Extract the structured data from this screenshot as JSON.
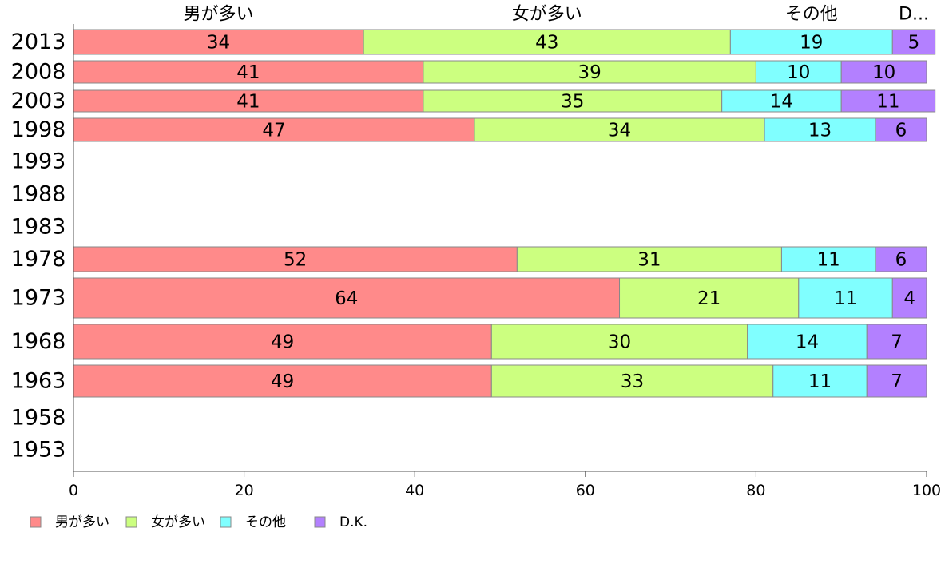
{
  "chart_data": {
    "type": "bar",
    "orientation": "horizontal",
    "stacked": true,
    "categories": [
      "2013",
      "2008",
      "2003",
      "1998",
      "1993",
      "1988",
      "1983",
      "1978",
      "1973",
      "1968",
      "1963",
      "1958",
      "1953"
    ],
    "series": [
      {
        "name": "男が多い",
        "color": "#FF8A8A",
        "values": [
          34,
          41,
          41,
          47,
          null,
          null,
          null,
          52,
          64,
          49,
          49,
          null,
          null
        ],
        "labels": [
          "34",
          "41",
          "41",
          "47",
          "",
          "",
          "",
          "52",
          "64",
          "49",
          "49",
          "",
          ""
        ]
      },
      {
        "name": "女が多い",
        "color": "#CCFF80",
        "values": [
          43,
          39,
          35,
          34,
          null,
          null,
          null,
          31,
          21,
          30,
          33,
          null,
          null
        ],
        "labels": [
          "43",
          "39",
          "35",
          "34",
          "",
          "",
          "",
          "31",
          "21",
          "30",
          "33",
          "",
          ""
        ]
      },
      {
        "name": "その他",
        "color": "#80FFFF",
        "values": [
          19,
          10,
          14,
          13,
          null,
          null,
          null,
          11,
          11,
          14,
          11,
          null,
          null
        ],
        "labels": [
          "19",
          "10",
          "14",
          "13",
          "",
          "",
          "",
          "11",
          "11",
          "14",
          "11",
          "",
          ""
        ]
      },
      {
        "name": "D.K.",
        "color": "#B380FF",
        "values": [
          5,
          10,
          11,
          6,
          null,
          null,
          null,
          6,
          4,
          7,
          7,
          null,
          null
        ],
        "labels": [
          "5",
          "10",
          "11",
          "6",
          "",
          "",
          "",
          "6",
          "4",
          "7",
          "7",
          "",
          ""
        ]
      }
    ],
    "top_labels": [
      "男が多い",
      "女が多い",
      "その他",
      "D..."
    ],
    "xlim": [
      0,
      100
    ],
    "xticks": [
      "0",
      "20",
      "40",
      "60",
      "80",
      "100"
    ],
    "legend": {
      "position": "bottom-left",
      "entries": [
        "男が多い",
        "女が多い",
        "その他",
        "D.K."
      ]
    },
    "grid": false
  }
}
